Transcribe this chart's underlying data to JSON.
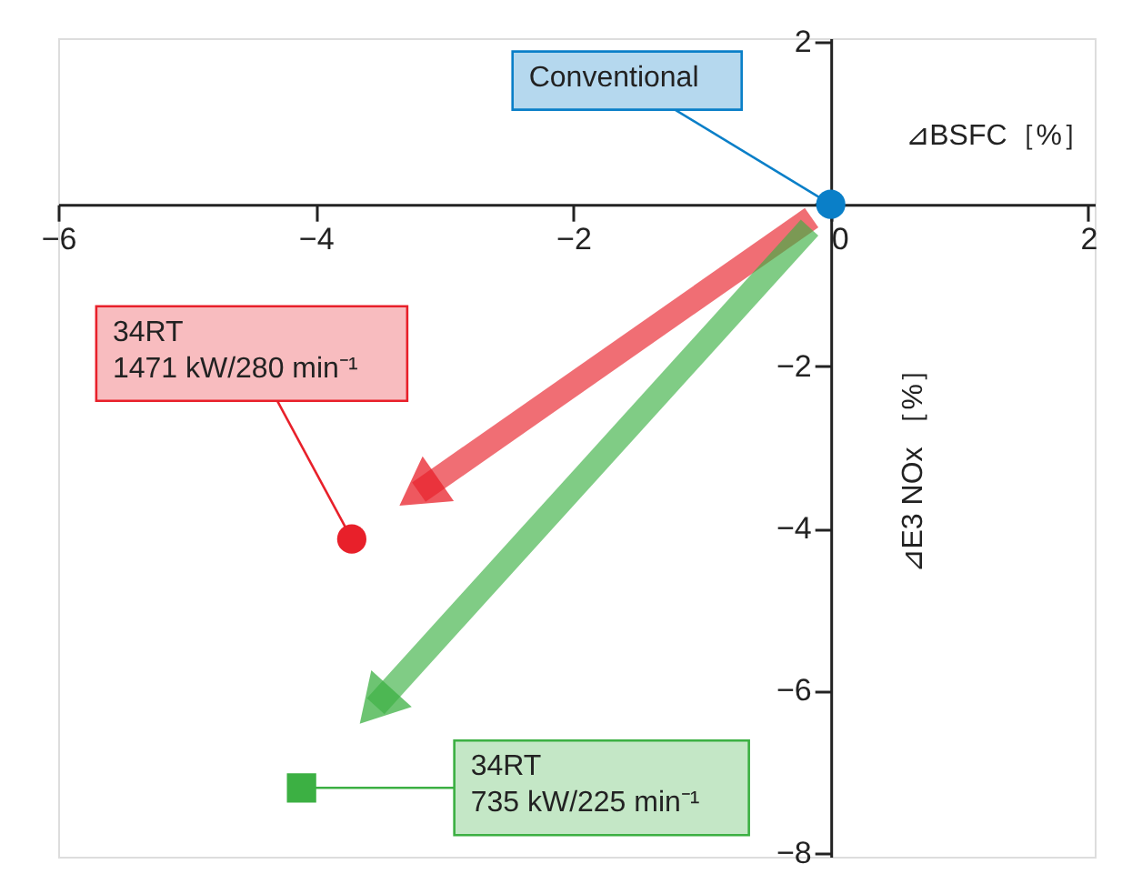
{
  "chart_data": {
    "type": "scatter",
    "xlabel": "⊿BSFC［%］",
    "ylabel": "⊿E3 NOx ［%］",
    "series": [
      {
        "color": "#0a7fc8",
        "marker": "circle",
        "x": [
          0
        ],
        "values": [
          0
        ]
      },
      {
        "color": "#e8202a",
        "marker": "circle",
        "x": [
          -3.72
        ],
        "values": [
          -4.13
        ]
      },
      {
        "color": "#3cb043",
        "marker": "square",
        "x": [
          -4.11
        ],
        "values": [
          -7.2
        ]
      }
    ],
    "annotations": [
      {
        "text": "Conventional",
        "x": 0,
        "y": 0
      },
      {
        "text": "34RT\n1471 kW/280 min⁻¹",
        "x": -3.72,
        "y": -4.13
      },
      {
        "text": "34RT\n735 kW/225 min⁻¹",
        "x": -4.11,
        "y": -7.2
      }
    ],
    "xlim": [
      -6,
      2.05
    ],
    "ylim": [
      -8.05,
      2.05
    ],
    "xticks": [
      -6,
      -4,
      -2,
      0,
      2
    ],
    "yticks": [
      2,
      {
        "value": 0,
        "label": null
      },
      -2,
      -4,
      -6,
      -8
    ],
    "grid": false
  }
}
